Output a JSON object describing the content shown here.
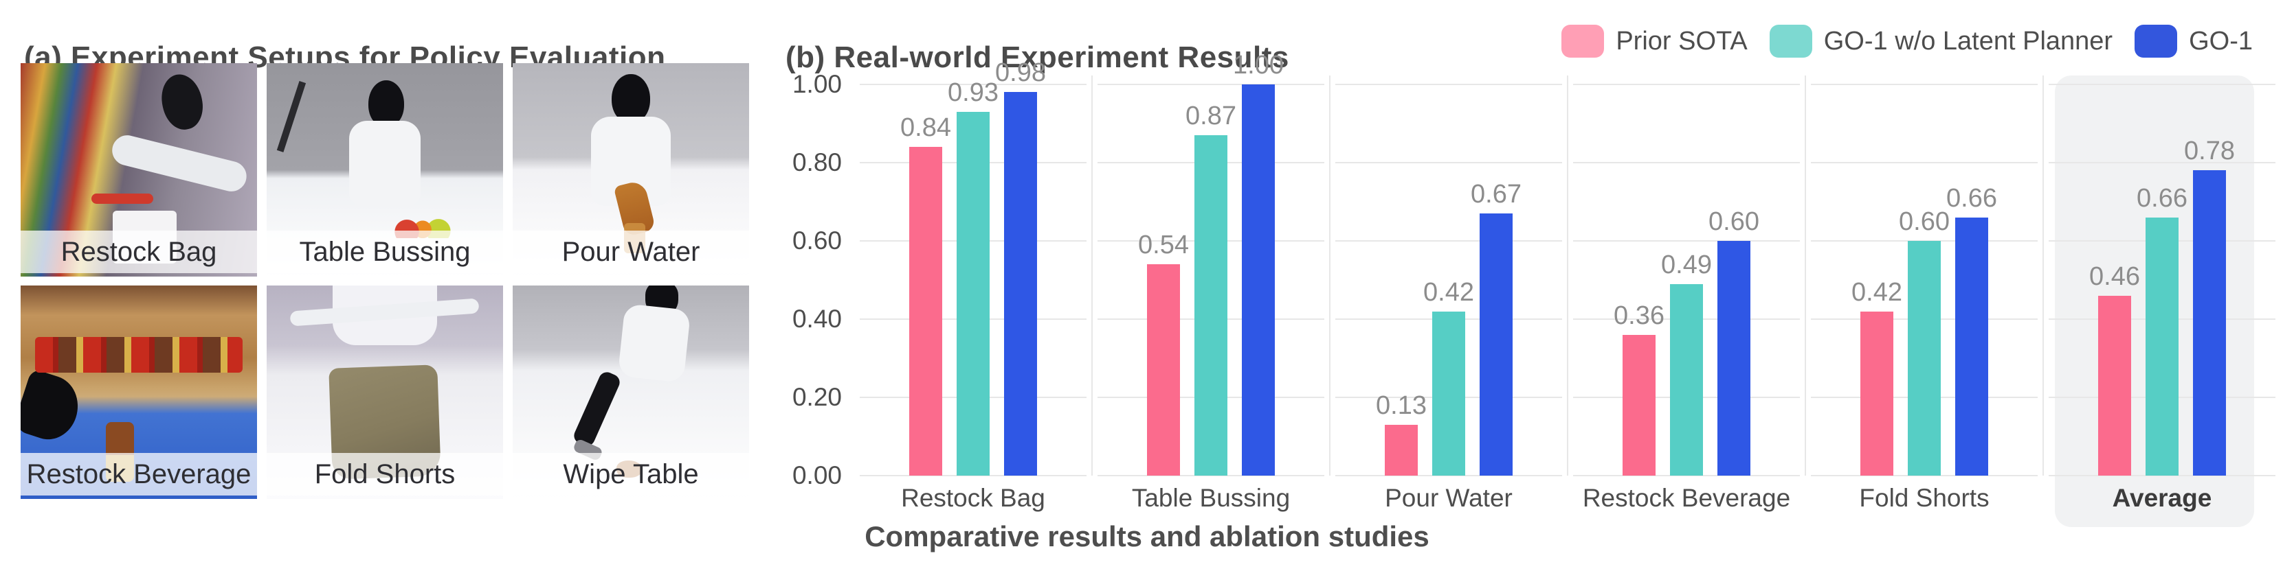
{
  "panel_a": {
    "title": "(a) Experiment Setups for Policy Evaluation",
    "photos": [
      {
        "label": "Restock Bag",
        "scene": "restock-bag"
      },
      {
        "label": "Table Bussing",
        "scene": "table-bussing"
      },
      {
        "label": "Pour Water",
        "scene": "pour-water"
      },
      {
        "label": "Restock Beverage",
        "scene": "restock-beverage"
      },
      {
        "label": "Fold Shorts",
        "scene": "fold-shorts"
      },
      {
        "label": "Wipe Table",
        "scene": "wipe-table"
      }
    ]
  },
  "panel_b": {
    "title": "(b) Real-world Experiment Results",
    "caption": "Comparative results and ablation studies"
  },
  "chart_data": {
    "type": "bar",
    "title": "(b) Real-world Experiment Results",
    "categories": [
      "Restock Bag",
      "Table Bussing",
      "Pour Water",
      "Restock Beverage",
      "Fold Shorts",
      "Average"
    ],
    "series": [
      {
        "name": "Prior SOTA",
        "color": "#FB6B8D",
        "legend_color": "#FF9FB5",
        "values": [
          0.84,
          0.54,
          0.13,
          0.36,
          0.42,
          0.46
        ]
      },
      {
        "name": "GO-1 w/o Latent Planner",
        "color": "#56CEC5",
        "legend_color": "#7DD9D1",
        "values": [
          0.93,
          0.87,
          0.42,
          0.49,
          0.6,
          0.66
        ]
      },
      {
        "name": "GO-1",
        "color": "#2F57E5",
        "legend_color": "#3356DD",
        "values": [
          0.98,
          1.0,
          0.67,
          0.6,
          0.66,
          0.78
        ]
      }
    ],
    "xlabel": "",
    "ylabel": "",
    "ylim": [
      0,
      1.0
    ],
    "yticks": [
      "0.00",
      "0.20",
      "0.40",
      "0.60",
      "0.80",
      "1.00"
    ],
    "grid": true,
    "legend_position": "top-right",
    "value_labels": true,
    "highlight_category": "Average",
    "colors": {
      "gridline": "#e7e7e7",
      "highlight_bg": "#f1f2f3",
      "tick_label": "#4d4d4d",
      "value_label": "#8c8c8c",
      "category_label": "#4d4d4d",
      "title": "#4a4a4a"
    }
  }
}
